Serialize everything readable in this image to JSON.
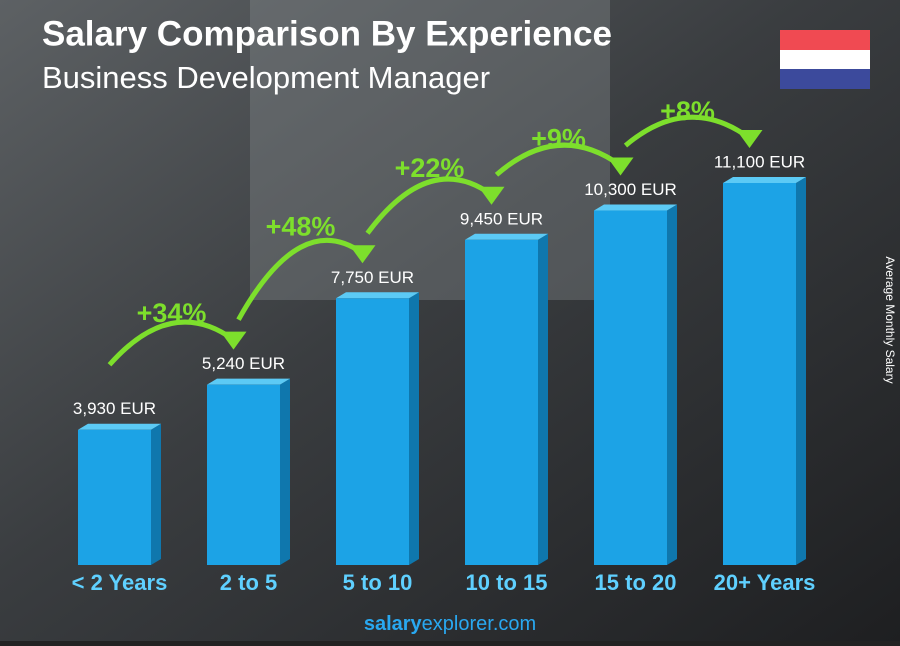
{
  "chart_data": {
    "type": "bar3d",
    "title": "Salary Comparison By Experience",
    "subtitle": "Business Development Manager",
    "y_label": "Average Monthly Salary",
    "categories": [
      "< 2 Years",
      "2 to 5",
      "5 to 10",
      "10 to 15",
      "15 to 20",
      "20+ Years"
    ],
    "values": [
      3930,
      5240,
      7750,
      9450,
      10300,
      11100
    ],
    "value_labels": [
      "3,930 EUR",
      "5,240 EUR",
      "7,750 EUR",
      "9,450 EUR",
      "10,300 EUR",
      "11,100 EUR"
    ],
    "changes": [
      "+34%",
      "+48%",
      "+22%",
      "+9%",
      "+8%"
    ],
    "color": "#1ca3e6",
    "change_color": "#7ddf2c",
    "footer": [
      "salary",
      "explorer.com"
    ]
  }
}
